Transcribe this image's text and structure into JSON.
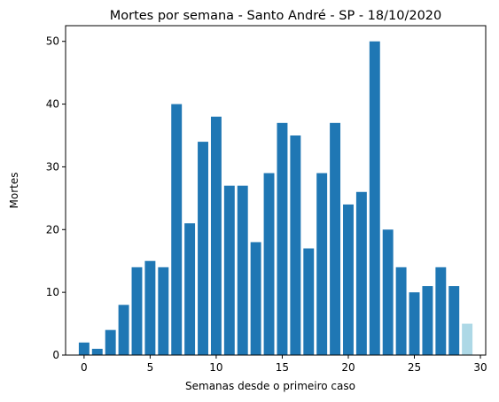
{
  "chart_data": {
    "type": "bar",
    "title": "Mortes por semana - Santo André - SP - 18/10/2020",
    "xlabel": "Semanas desde o primeiro caso",
    "ylabel": "Mortes",
    "x": [
      0,
      1,
      2,
      3,
      4,
      5,
      6,
      7,
      8,
      9,
      10,
      11,
      12,
      13,
      14,
      15,
      16,
      17,
      18,
      19,
      20,
      21,
      22,
      23,
      24,
      25,
      26,
      27,
      28,
      29
    ],
    "values": [
      2,
      1,
      4,
      8,
      14,
      15,
      14,
      40,
      21,
      34,
      38,
      27,
      27,
      18,
      29,
      37,
      35,
      17,
      29,
      37,
      24,
      26,
      50,
      20,
      14,
      10,
      11,
      14,
      11,
      5
    ],
    "bar_colors": [
      "#1f77b4",
      "#1f77b4",
      "#1f77b4",
      "#1f77b4",
      "#1f77b4",
      "#1f77b4",
      "#1f77b4",
      "#1f77b4",
      "#1f77b4",
      "#1f77b4",
      "#1f77b4",
      "#1f77b4",
      "#1f77b4",
      "#1f77b4",
      "#1f77b4",
      "#1f77b4",
      "#1f77b4",
      "#1f77b4",
      "#1f77b4",
      "#1f77b4",
      "#1f77b4",
      "#1f77b4",
      "#1f77b4",
      "#1f77b4",
      "#1f77b4",
      "#1f77b4",
      "#1f77b4",
      "#1f77b4",
      "#1f77b4",
      "#add8e6"
    ],
    "xlim": [
      -1.4,
      30.4
    ],
    "ylim": [
      0,
      52.5
    ],
    "xticks": [
      0,
      5,
      10,
      15,
      20,
      25,
      30
    ],
    "yticks": [
      0,
      10,
      20,
      30,
      40,
      50
    ],
    "grid": false,
    "legend": "none"
  }
}
